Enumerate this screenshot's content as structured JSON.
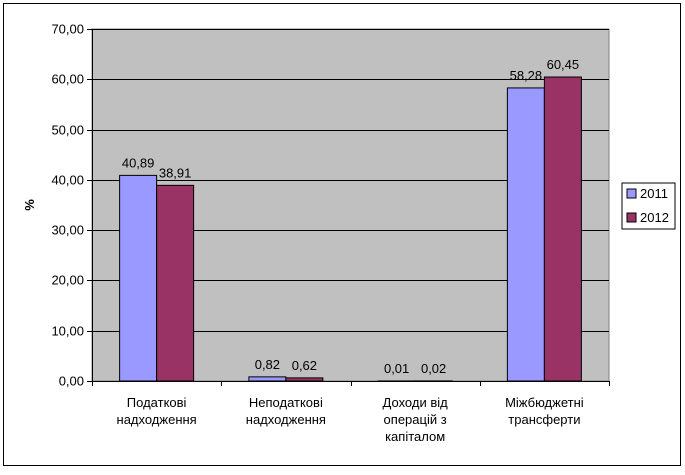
{
  "chart_data": {
    "type": "bar",
    "categories": [
      [
        "Податкові",
        "надходження"
      ],
      [
        "Неподаткові",
        "надходження"
      ],
      [
        "Доходи від",
        "операцій з",
        "капіталом"
      ],
      [
        "Міжбюджетні",
        "трансферти"
      ]
    ],
    "series": [
      {
        "name": "2011",
        "values": [
          40.89,
          0.82,
          0.01,
          58.28
        ],
        "labels": [
          "40,89",
          "0,82",
          "0,01",
          "58,28"
        ]
      },
      {
        "name": "2012",
        "values": [
          38.91,
          0.62,
          0.02,
          60.45
        ],
        "labels": [
          "38,91",
          "0,62",
          "0,02",
          "60,45"
        ]
      }
    ],
    "ylabel": "%",
    "ylim": [
      0,
      70
    ],
    "yticks": [
      "0,00",
      "10,00",
      "20,00",
      "30,00",
      "40,00",
      "50,00",
      "60,00",
      "70,00"
    ],
    "grid": true,
    "legend_position": "right",
    "colors": {
      "series": [
        "#9999ff",
        "#993366"
      ],
      "plot_background": "#c0c0c0",
      "gridline": "#000000"
    }
  }
}
